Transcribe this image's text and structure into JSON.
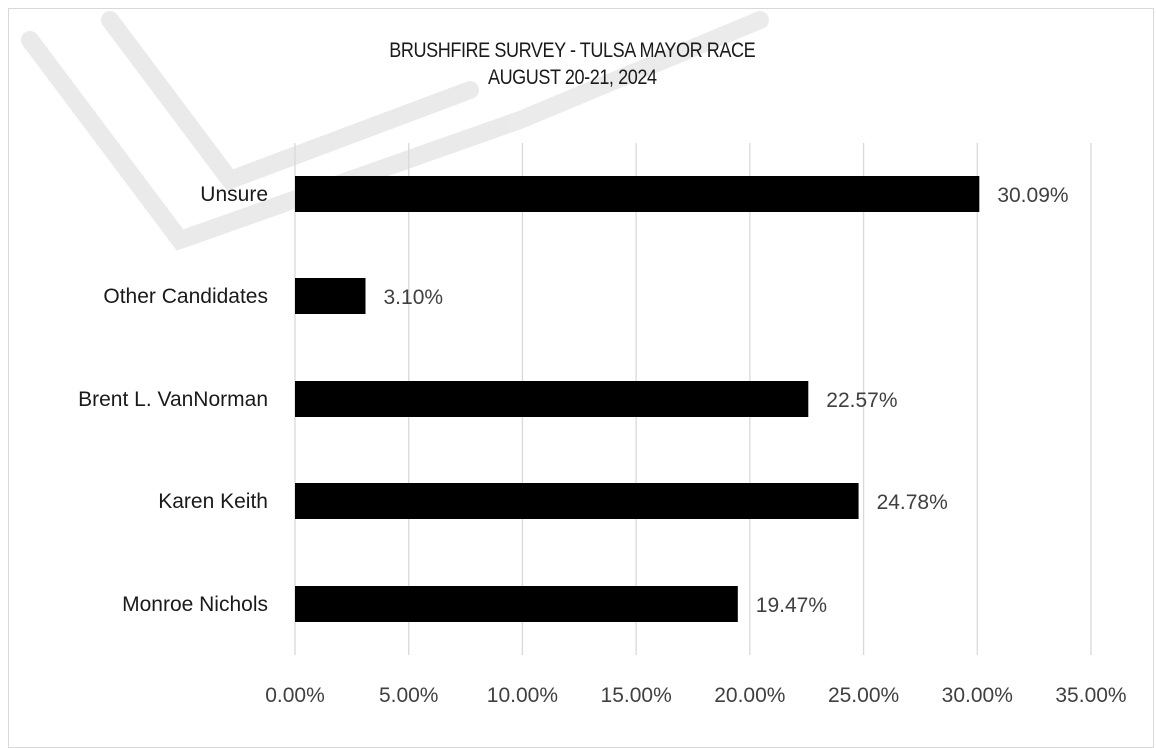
{
  "chart_data": {
    "type": "bar",
    "orientation": "horizontal",
    "title": "BRUSHFIRE SURVEY - TULSA MAYOR RACE",
    "subtitle": "AUGUST 20-21, 2024",
    "categories": [
      "Unsure",
      "Other Candidates",
      "Brent L. VanNorman",
      "Karen Keith",
      "Monroe Nichols"
    ],
    "values": [
      30.09,
      3.1,
      22.57,
      24.78,
      19.47
    ],
    "data_labels": [
      "30.09%",
      "3.10%",
      "22.57%",
      "24.78%",
      "19.47%"
    ],
    "xlim": [
      0,
      35
    ],
    "x_ticks": [
      0,
      5,
      10,
      15,
      20,
      25,
      30,
      35
    ],
    "x_tick_labels": [
      "0.00%",
      "5.00%",
      "10.00%",
      "15.00%",
      "20.00%",
      "25.00%",
      "30.00%",
      "35.00%"
    ],
    "xlabel": "",
    "ylabel": "",
    "grid": "vertical",
    "legend": "none",
    "bar_color": "#000000",
    "grid_color": "#d9d9d9",
    "text_color": "#404040"
  }
}
